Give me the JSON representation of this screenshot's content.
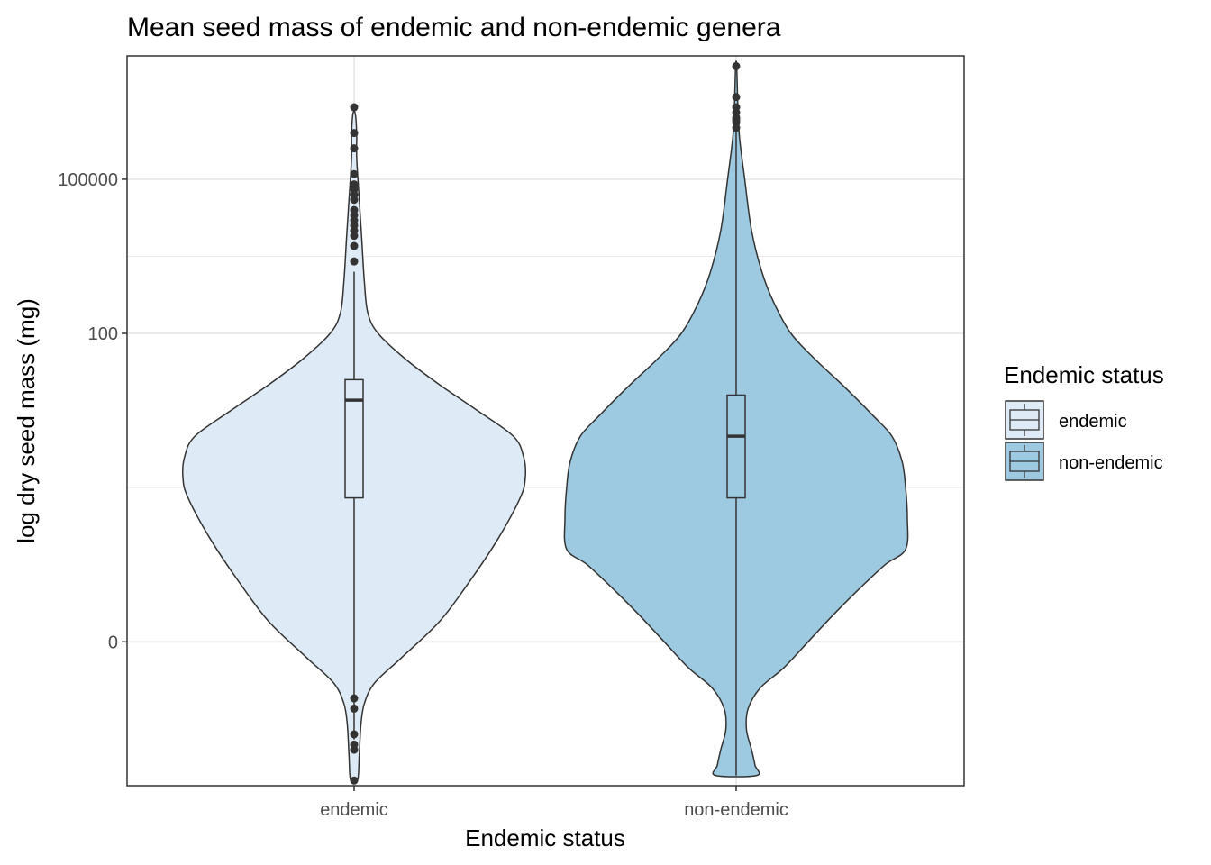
{
  "chart_data": {
    "type": "violin",
    "title": "Mean seed mass of endemic and non-endemic genera",
    "xlabel": "Endemic status",
    "ylabel": "log dry seed mass (mg)",
    "y_scale": "log10",
    "y_ticks": [
      {
        "value": 0.0001,
        "label": "0"
      },
      {
        "value": 100,
        "label": "100"
      },
      {
        "value": 100000,
        "label": "100000"
      }
    ],
    "ylim_log10": [
      -6.8,
      7.4
    ],
    "grid": true,
    "legend": {
      "title": "Endemic status",
      "position": "right",
      "entries": [
        "endemic",
        "non-endemic"
      ]
    },
    "categories": [
      "endemic",
      "non-endemic"
    ],
    "series": [
      {
        "name": "endemic",
        "color": "#deebf7",
        "box": {
          "q1_log10": -1.2,
          "median_log10": 0.7,
          "q3_log10": 1.1
        },
        "whiskers_log10": [
          -5.9,
          3.2
        ],
        "density_profile": [
          [
            -6.7,
            0.02
          ],
          [
            -6.2,
            0.03
          ],
          [
            -5.6,
            0.04
          ],
          [
            -5.2,
            0.06
          ],
          [
            -4.8,
            0.12
          ],
          [
            -4.3,
            0.28
          ],
          [
            -3.6,
            0.5
          ],
          [
            -2.8,
            0.68
          ],
          [
            -2.0,
            0.84
          ],
          [
            -1.2,
            0.97
          ],
          [
            -0.8,
            1.0
          ],
          [
            -0.4,
            0.99
          ],
          [
            0.0,
            0.93
          ],
          [
            0.5,
            0.72
          ],
          [
            1.0,
            0.5
          ],
          [
            1.5,
            0.3
          ],
          [
            2.0,
            0.14
          ],
          [
            2.4,
            0.08
          ],
          [
            3.0,
            0.06
          ],
          [
            3.8,
            0.045
          ],
          [
            4.6,
            0.03
          ],
          [
            5.4,
            0.015
          ],
          [
            5.8,
            0.015
          ],
          [
            6.1,
            0.012
          ],
          [
            6.3,
            0.005
          ]
        ],
        "outliers_log10": [
          -6.7,
          -6.1,
          -6.0,
          -5.8,
          -5.3,
          -5.1,
          3.4,
          3.7,
          3.9,
          4.0,
          4.1,
          4.2,
          4.3,
          4.4,
          4.6,
          4.7,
          4.8,
          4.9,
          5.1,
          5.6,
          5.9,
          6.4
        ]
      },
      {
        "name": "non-endemic",
        "color": "#9ecae1",
        "box": {
          "q1_log10": -1.2,
          "median_log10": 0.0,
          "q3_log10": 0.8
        },
        "whiskers_log10": [
          -6.6,
          6.0
        ],
        "density_profile": [
          [
            -6.6,
            0.12
          ],
          [
            -6.4,
            0.11
          ],
          [
            -6.1,
            0.09
          ],
          [
            -5.7,
            0.06
          ],
          [
            -5.3,
            0.07
          ],
          [
            -4.9,
            0.14
          ],
          [
            -4.5,
            0.28
          ],
          [
            -4.0,
            0.42
          ],
          [
            -3.5,
            0.56
          ],
          [
            -3.0,
            0.71
          ],
          [
            -2.5,
            0.87
          ],
          [
            -2.2,
            0.99
          ],
          [
            -1.6,
            1.0
          ],
          [
            -1.0,
            0.99
          ],
          [
            -0.5,
            0.97
          ],
          [
            0.0,
            0.91
          ],
          [
            0.4,
            0.8
          ],
          [
            1.0,
            0.62
          ],
          [
            1.5,
            0.46
          ],
          [
            2.0,
            0.32
          ],
          [
            2.6,
            0.22
          ],
          [
            3.2,
            0.15
          ],
          [
            4.0,
            0.09
          ],
          [
            5.0,
            0.05
          ],
          [
            5.8,
            0.02
          ],
          [
            6.4,
            0.01
          ],
          [
            7.2,
            0.003
          ]
        ],
        "outliers_log10": [
          6.0,
          6.1,
          6.15,
          6.2,
          6.3,
          6.4,
          6.6,
          7.2
        ]
      }
    ]
  }
}
